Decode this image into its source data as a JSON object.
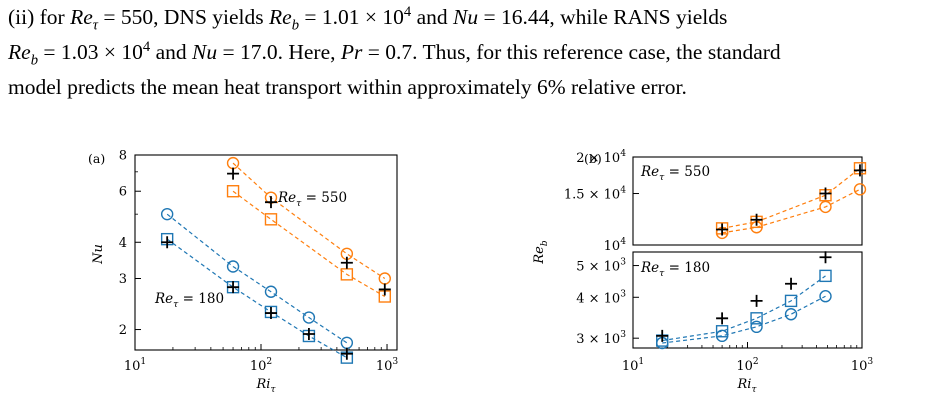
{
  "paragraph": {
    "l1": {
      "a": "(ii) for ",
      "re": "Re",
      "tau": "τ",
      "b": " = 550, DNS yields ",
      "re2": "Re",
      "sb": "b",
      "c": " = 1.01 × 10",
      "e": "4",
      "d": " and ",
      "nu": "Nu",
      "f": " = 16.44, while RANS yields"
    },
    "l2": {
      "re": "Re",
      "sb": "b",
      "a": " = 1.03 × 10",
      "e": "4",
      "b": " and ",
      "nu": "Nu",
      "c": " = 17.0. Here, ",
      "pr": "Pr",
      "d": " = 0.7. Thus, for this reference case, the standard"
    },
    "l3": "model predicts the mean heat transport within approximately 6% relative error."
  },
  "chart_data": [
    {
      "type": "scatter",
      "panel_label": "(a)",
      "xlabel": "Ri_τ",
      "ylabel": "Nu",
      "x_scale": "log",
      "y_scale": "log",
      "xlim": [
        10,
        1200
      ],
      "ylim": [
        1.7,
        8
      ],
      "x_ticks": [
        "10^1",
        "10^2",
        "10^3"
      ],
      "y_ticks": [
        "2",
        "3",
        "4",
        "6",
        "8"
      ],
      "annotations": [
        "Re_τ = 550",
        "Re_τ = 180"
      ],
      "colors": {
        "Re180": "#1f77b4",
        "Re550": "#ff7f0e",
        "DNS": "#000000"
      },
      "series": [
        {
          "group": "Re_τ=550",
          "marker": "circle",
          "dashed": true,
          "x": [
            60,
            120,
            480,
            960
          ],
          "y": [
            7.5,
            5.7,
            3.65,
            3.0
          ]
        },
        {
          "group": "Re_τ=550",
          "marker": "square",
          "dashed": true,
          "x": [
            60,
            120,
            480,
            960
          ],
          "y": [
            6.0,
            4.8,
            3.1,
            2.6
          ]
        },
        {
          "group": "Re_τ=550",
          "marker": "plus",
          "dashed": false,
          "x": [
            60,
            120,
            480,
            960
          ],
          "y": [
            6.9,
            5.5,
            3.4,
            2.75
          ]
        },
        {
          "group": "Re_τ=180",
          "marker": "circle",
          "dashed": true,
          "x": [
            18,
            60,
            120,
            240,
            480
          ],
          "y": [
            5.0,
            3.3,
            2.7,
            2.2,
            1.8
          ]
        },
        {
          "group": "Re_τ=180",
          "marker": "square",
          "dashed": true,
          "x": [
            18,
            60,
            120,
            240,
            480
          ],
          "y": [
            4.1,
            2.8,
            2.3,
            1.9,
            1.6
          ]
        },
        {
          "group": "Re_τ=180",
          "marker": "plus",
          "dashed": false,
          "x": [
            18,
            60,
            120,
            240,
            480
          ],
          "y": [
            4.0,
            2.8,
            2.28,
            1.93,
            1.65
          ]
        }
      ]
    },
    {
      "type": "scatter",
      "panel_label": "(b)",
      "xlabel": "Ri_τ",
      "ylabel": "Re_b",
      "x_scale": "log",
      "y_scale": "log",
      "xlim": [
        10,
        1000
      ],
      "upper_panel": {
        "ylim": [
          10000,
          20000
        ],
        "y_ticks": [
          "2 × 10^4",
          "1.5 × 10^4",
          "10^4"
        ],
        "annotation": "Re_τ = 550",
        "series": [
          {
            "marker": "circle",
            "dashed": true,
            "x": [
              60,
              120,
              480,
              960
            ],
            "y": [
              11000,
              11500,
              13500,
              15500
            ]
          },
          {
            "marker": "square",
            "dashed": true,
            "x": [
              60,
              120,
              480,
              960
            ],
            "y": [
              11400,
              12000,
              14800,
              18300
            ]
          },
          {
            "marker": "plus",
            "dashed": false,
            "x": [
              60,
              120,
              480,
              960
            ],
            "y": [
              11300,
              12200,
              15000,
              18000
            ]
          }
        ]
      },
      "lower_panel": {
        "ylim": [
          2800,
          5500
        ],
        "y_ticks": [
          "5 × 10^3",
          "4 × 10^3",
          "3 × 10^3"
        ],
        "annotation": "Re_τ = 180",
        "series": [
          {
            "marker": "circle",
            "dashed": true,
            "x": [
              18,
              60,
              120,
              240,
              480
            ],
            "y": [
              2900,
              3050,
              3250,
              3550,
              4030
            ]
          },
          {
            "marker": "square",
            "dashed": true,
            "x": [
              18,
              60,
              120,
              240,
              480
            ],
            "y": [
              2950,
              3150,
              3450,
              3900,
              4650
            ]
          },
          {
            "marker": "plus",
            "dashed": false,
            "x": [
              18,
              60,
              120,
              240,
              480
            ],
            "y": [
              3050,
              3450,
              3900,
              4400,
              5300
            ]
          }
        ]
      },
      "x_ticks": [
        "10^1",
        "10^2",
        "10^3"
      ]
    }
  ]
}
